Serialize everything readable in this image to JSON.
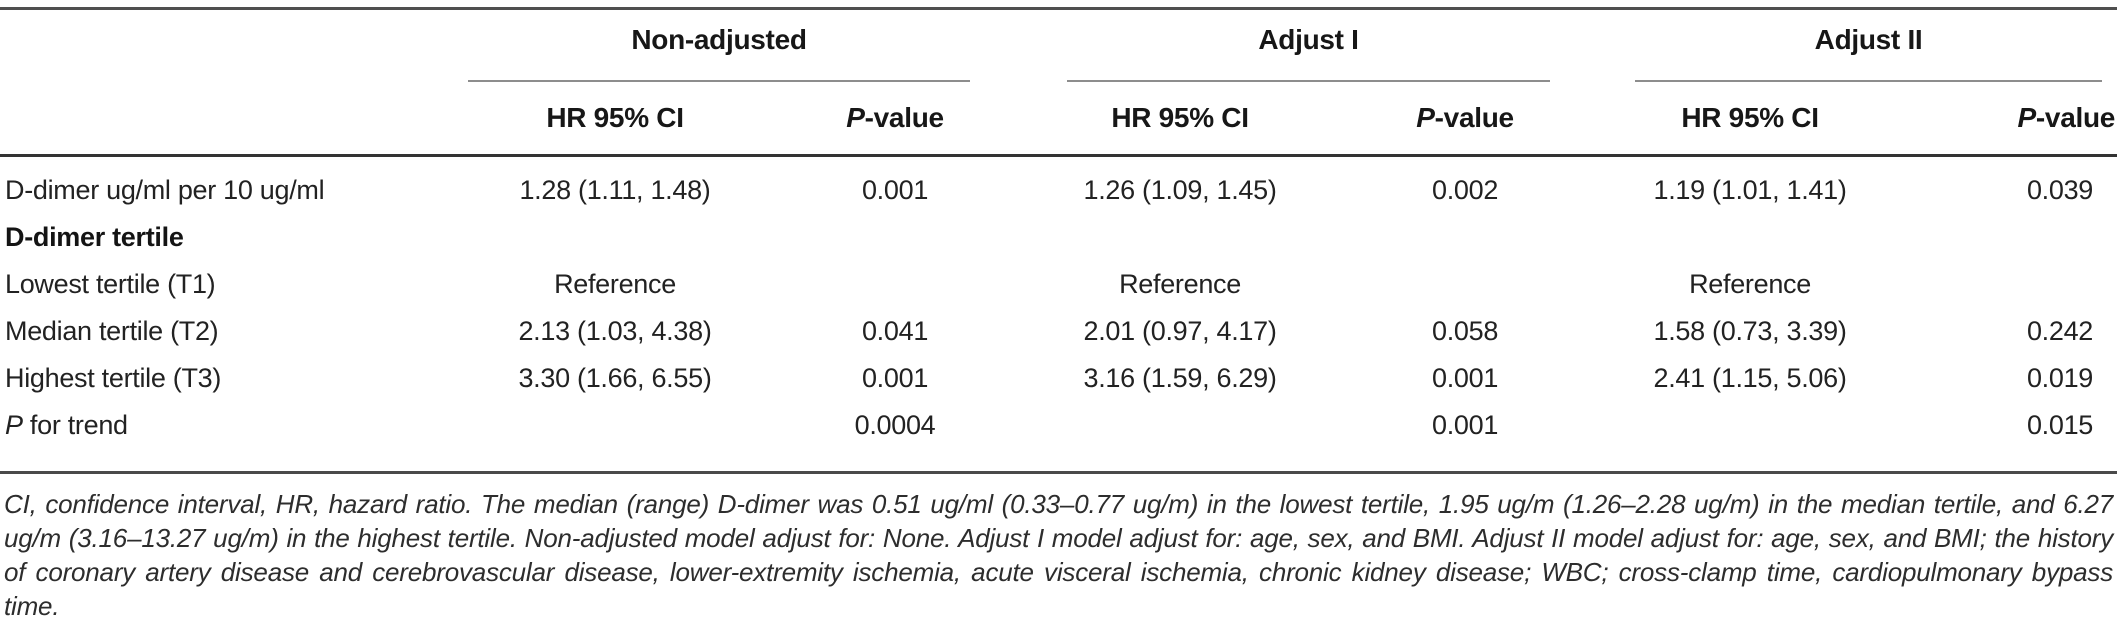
{
  "table": {
    "groups": [
      {
        "label": "Non-adjusted"
      },
      {
        "label": "Adjust I"
      },
      {
        "label": "Adjust II"
      }
    ],
    "subheader": {
      "hr_label": "HR 95% CI",
      "p_label_italic": "P",
      "p_label_rest": "-value"
    },
    "rows": [
      {
        "label": "D-dimer ug/ml per 10 ug/ml",
        "hr1": "1.28 (1.11, 1.48)",
        "p1": "0.001",
        "hr2": "1.26 (1.09, 1.45)",
        "p2": "0.002",
        "hr3": "1.19 (1.01, 1.41)",
        "p3": "0.039"
      },
      {
        "label": "D-dimer tertile"
      },
      {
        "label": "Lowest tertile (T1)",
        "hr1": "Reference",
        "hr2": "Reference",
        "hr3": "Reference"
      },
      {
        "label": "Median tertile (T2)",
        "hr1": "2.13 (1.03, 4.38)",
        "p1": "0.041",
        "hr2": "2.01 (0.97, 4.17)",
        "p2": "0.058",
        "hr3": "1.58 (0.73, 3.39)",
        "p3": "0.242"
      },
      {
        "label": "Highest tertile (T3)",
        "hr1": "3.30 (1.66, 6.55)",
        "p1": "0.001",
        "hr2": "3.16 (1.59, 6.29)",
        "p2": "0.001",
        "hr3": "2.41 (1.15, 5.06)",
        "p3": "0.019"
      },
      {
        "label_italic": "P",
        "label_rest": " for trend",
        "p1": "0.0004",
        "p2": "0.001",
        "p3": "0.015"
      }
    ]
  },
  "footnote": "CI, confidence interval, HR, hazard ratio. The median (range) D-dimer was 0.51 ug/ml (0.33–0.77 ug/m) in the lowest tertile, 1.95 ug/m (1.26–2.28 ug/m) in the median tertile, and 6.27 ug/m (3.16–13.27 ug/m) in the highest tertile. Non-adjusted model adjust for: None. Adjust I model adjust for: age, sex, and BMI. Adjust II model adjust for: age, sex, and BMI; the history of coronary artery disease and cerebrovascular disease, lower-extremity ischemia, acute visceral ischemia, chronic kidney disease; WBC; cross-clamp time, cardiopulmonary bypass time.",
  "colors": {
    "rule_dark": "#333333",
    "rule_medium": "#4f4f4f",
    "rule_light": "#8d8d8d",
    "text": "#1c1c1c"
  }
}
